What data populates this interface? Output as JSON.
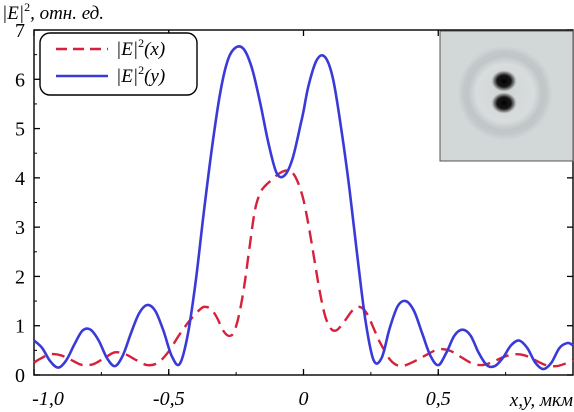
{
  "chart_data": {
    "type": "line",
    "ylabel_prefix": "|E|",
    "ylabel_sup": "2",
    "ylabel_suffix": ", отн. ед.",
    "xlabel": "x,y, мкм",
    "xlim": [
      -1.0,
      1.0
    ],
    "ylim": [
      0,
      7
    ],
    "x_ticks": [
      "-1,0",
      "-0,5",
      "0",
      "0,5"
    ],
    "x_tick_values": [
      -1.0,
      -0.5,
      0.0,
      0.5
    ],
    "y_ticks": [
      "0",
      "1",
      "2",
      "3",
      "4",
      "5",
      "6",
      "7"
    ],
    "y_tick_values": [
      0,
      1,
      2,
      3,
      4,
      5,
      6,
      7
    ],
    "legend_position": "top-left",
    "inset": "focal spot intensity image (two dark lobes)",
    "series": [
      {
        "name_base": "|E|",
        "name_sup": "2",
        "name_arg": "(x)",
        "color": "#d6203c",
        "dash": "dashed",
        "x": [
          -1.0,
          -0.98,
          -0.94,
          -0.9,
          -0.86,
          -0.82,
          -0.78,
          -0.74,
          -0.7,
          -0.66,
          -0.62,
          -0.58,
          -0.54,
          -0.5,
          -0.46,
          -0.42,
          -0.38,
          -0.36,
          -0.34,
          -0.32,
          -0.3,
          -0.28,
          -0.26,
          -0.24,
          -0.22,
          -0.2,
          -0.18,
          -0.16,
          -0.14,
          -0.12,
          -0.1,
          -0.08,
          -0.06,
          -0.04,
          -0.02,
          0.0,
          0.02,
          0.04,
          0.06,
          0.08,
          0.1,
          0.12,
          0.14,
          0.16,
          0.18,
          0.2,
          0.22,
          0.24,
          0.26,
          0.28,
          0.3,
          0.32,
          0.34,
          0.36,
          0.38,
          0.42,
          0.46,
          0.5,
          0.54,
          0.58,
          0.62,
          0.66,
          0.7,
          0.74,
          0.78,
          0.82,
          0.86,
          0.9,
          0.94,
          0.98,
          1.0
        ],
        "values": [
          0.25,
          0.32,
          0.42,
          0.4,
          0.3,
          0.2,
          0.22,
          0.34,
          0.46,
          0.42,
          0.3,
          0.2,
          0.25,
          0.48,
          0.82,
          1.12,
          1.35,
          1.38,
          1.32,
          1.15,
          0.92,
          0.8,
          0.85,
          1.2,
          1.8,
          2.6,
          3.35,
          3.7,
          3.85,
          3.95,
          4.05,
          4.12,
          4.15,
          4.1,
          3.9,
          3.55,
          3.0,
          2.35,
          1.7,
          1.2,
          0.95,
          0.9,
          1.0,
          1.15,
          1.3,
          1.38,
          1.35,
          1.2,
          0.95,
          0.7,
          0.5,
          0.32,
          0.22,
          0.18,
          0.2,
          0.3,
          0.42,
          0.52,
          0.5,
          0.38,
          0.25,
          0.2,
          0.26,
          0.36,
          0.42,
          0.4,
          0.3,
          0.2,
          0.18,
          0.25,
          0.3
        ]
      },
      {
        "name_base": "|E|",
        "name_sup": "2",
        "name_arg": "(y)",
        "color": "#3a3ad8",
        "dash": "solid",
        "x": [
          -1.0,
          -0.97,
          -0.94,
          -0.91,
          -0.88,
          -0.85,
          -0.82,
          -0.79,
          -0.76,
          -0.73,
          -0.7,
          -0.67,
          -0.64,
          -0.61,
          -0.58,
          -0.55,
          -0.52,
          -0.49,
          -0.46,
          -0.43,
          -0.4,
          -0.37,
          -0.34,
          -0.31,
          -0.28,
          -0.25,
          -0.22,
          -0.19,
          -0.16,
          -0.13,
          -0.1,
          -0.07,
          -0.04,
          -0.01,
          0.0,
          0.02,
          0.05,
          0.08,
          0.11,
          0.14,
          0.17,
          0.2,
          0.23,
          0.26,
          0.29,
          0.32,
          0.35,
          0.38,
          0.41,
          0.44,
          0.47,
          0.5,
          0.53,
          0.56,
          0.59,
          0.62,
          0.65,
          0.68,
          0.71,
          0.74,
          0.77,
          0.8,
          0.83,
          0.86,
          0.89,
          0.92,
          0.95,
          0.98,
          1.0
        ],
        "values": [
          0.7,
          0.55,
          0.28,
          0.15,
          0.3,
          0.62,
          0.9,
          0.92,
          0.7,
          0.35,
          0.18,
          0.4,
          0.85,
          1.25,
          1.42,
          1.3,
          0.9,
          0.4,
          0.22,
          0.8,
          1.9,
          3.3,
          4.6,
          5.7,
          6.4,
          6.65,
          6.6,
          6.2,
          5.5,
          4.7,
          4.1,
          4.05,
          4.4,
          5.1,
          5.35,
          5.9,
          6.4,
          6.45,
          6.0,
          5.0,
          3.8,
          2.4,
          1.1,
          0.3,
          0.35,
          0.95,
          1.4,
          1.5,
          1.3,
          0.85,
          0.4,
          0.2,
          0.45,
          0.8,
          0.92,
          0.8,
          0.45,
          0.2,
          0.18,
          0.35,
          0.6,
          0.7,
          0.55,
          0.25,
          0.12,
          0.25,
          0.55,
          0.65,
          0.6
        ]
      }
    ]
  }
}
